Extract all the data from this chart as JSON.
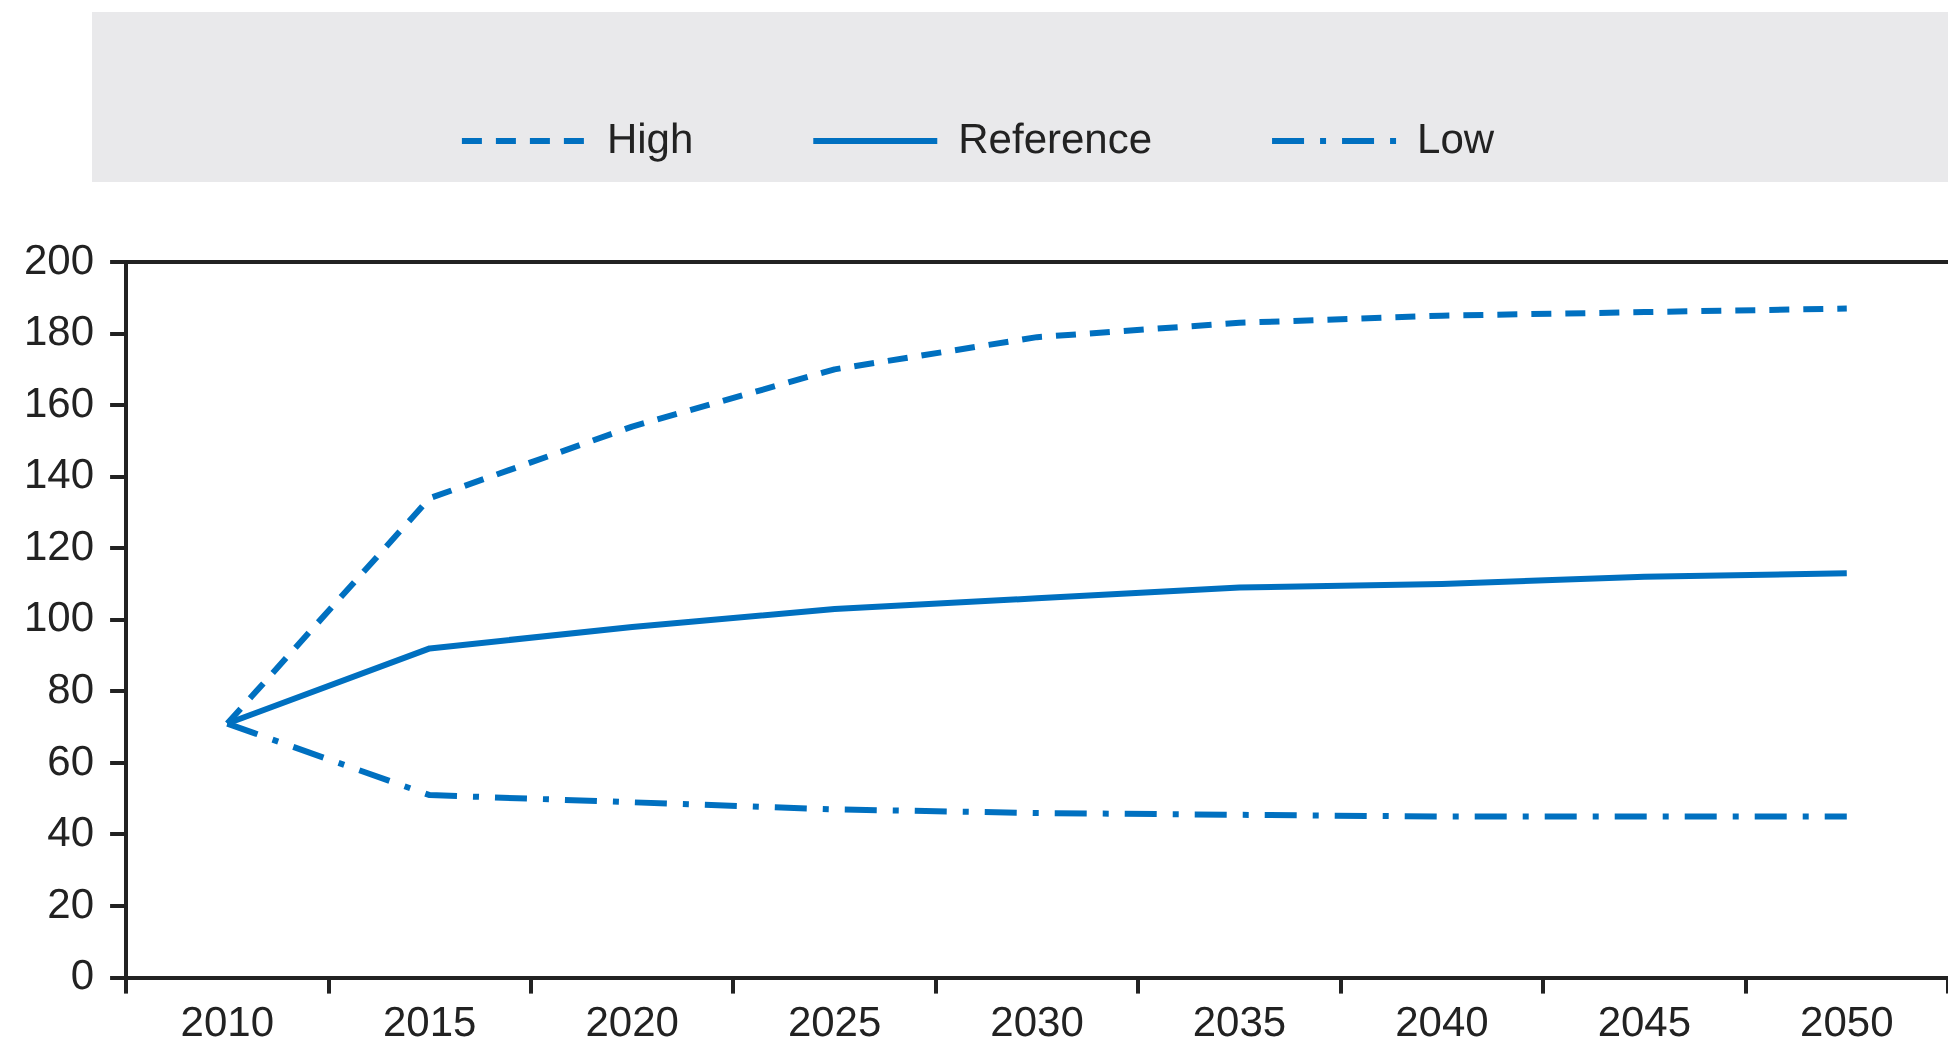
{
  "chart_data": {
    "type": "line",
    "categories": [
      "2010",
      "2015",
      "2020",
      "2025",
      "2030",
      "2035",
      "2040",
      "2045",
      "2050"
    ],
    "series": [
      {
        "name": "High",
        "color": "#0070c0",
        "line_style": "dashed",
        "values": [
          71,
          134,
          154,
          170,
          179,
          183,
          185,
          186,
          187
        ]
      },
      {
        "name": "Reference",
        "color": "#0070c0",
        "line_style": "solid",
        "values": [
          71,
          92,
          98,
          103,
          106,
          109,
          110,
          112,
          113
        ]
      },
      {
        "name": "Low",
        "color": "#0070c0",
        "line_style": "dashdot",
        "values": [
          71,
          51,
          49,
          47,
          46,
          45.5,
          45,
          45,
          45
        ]
      }
    ],
    "ylim": [
      0,
      200
    ],
    "yticks": [
      0,
      20,
      40,
      60,
      80,
      100,
      120,
      140,
      160,
      180,
      200
    ],
    "grid": false,
    "legend": "top",
    "marker": "none"
  }
}
